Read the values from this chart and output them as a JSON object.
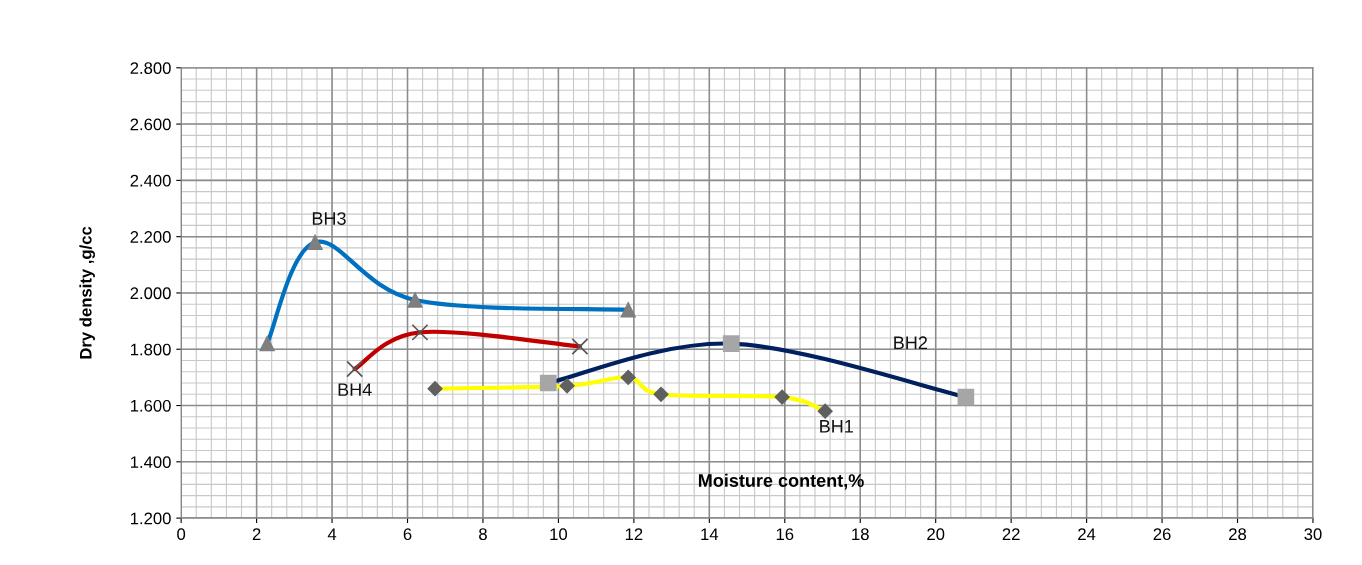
{
  "chart_data": {
    "type": "line",
    "xlabel": "Moisture content,%",
    "ylabel": "Dry density ,g/cc",
    "xlim": [
      0,
      30
    ],
    "xticks": [
      0,
      2,
      4,
      6,
      8,
      10,
      12,
      14,
      16,
      18,
      20,
      22,
      24,
      26,
      28,
      30
    ],
    "ylim": [
      1.2,
      2.8
    ],
    "yticks": [
      {
        "value": 1.2,
        "label": "1.200"
      },
      {
        "value": 1.4,
        "label": "1.400"
      },
      {
        "value": 1.6,
        "label": "1.600"
      },
      {
        "value": 1.8,
        "label": "1.800"
      },
      {
        "value": 2.0,
        "label": "2.000"
      },
      {
        "value": 2.2,
        "label": "2.200"
      },
      {
        "value": 2.4,
        "label": "2.400"
      },
      {
        "value": 2.6,
        "label": "2.600"
      },
      {
        "value": 2.8,
        "label": "2.800"
      }
    ],
    "grid": true,
    "legend": false,
    "series": [
      {
        "name": "BH1",
        "color": "#ffff00",
        "marker": "diamond",
        "x": [
          6.73,
          10.23,
          11.85,
          12.72,
          15.93,
          17.07
        ],
        "values": [
          1.66,
          1.67,
          1.7,
          1.64,
          1.63,
          1.58
        ]
      },
      {
        "name": "BH2",
        "color": "#002060",
        "marker": "square",
        "x": [
          9.73,
          14.58,
          20.8
        ],
        "values": [
          1.68,
          1.82,
          1.63
        ]
      },
      {
        "name": "BH3",
        "color": "#0070c0",
        "marker": "triangle",
        "x": [
          2.28,
          3.55,
          6.2,
          11.85
        ],
        "values": [
          1.82,
          2.18,
          1.975,
          1.94
        ]
      },
      {
        "name": "BH4",
        "color": "#c00000",
        "marker": "cross",
        "x": [
          4.6,
          6.33,
          10.57
        ],
        "values": [
          1.73,
          1.86,
          1.81
        ]
      }
    ]
  }
}
